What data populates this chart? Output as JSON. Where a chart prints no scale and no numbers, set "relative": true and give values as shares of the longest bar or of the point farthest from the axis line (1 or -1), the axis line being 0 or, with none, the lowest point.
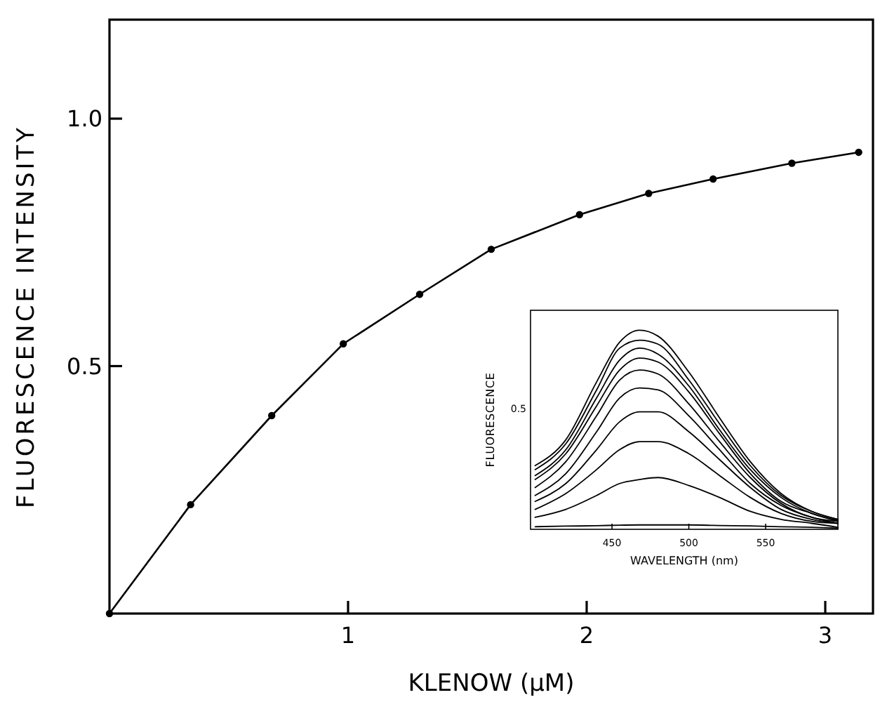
{
  "chart_data": [
    {
      "type": "line",
      "xlabel": "KLENOW (µM)",
      "ylabel": "FLUORESCENCE INTENSITY",
      "xlim": [
        0,
        3.2
      ],
      "ylim": [
        0,
        1.2
      ],
      "xticks": [
        1,
        2,
        3
      ],
      "yticks": [
        0.5,
        {
          "value": 1.0,
          "label": "1.0"
        }
      ],
      "grid": false,
      "marker": "circle",
      "line_style": "solid",
      "series": [
        {
          "color": "#000000",
          "x": [
            0,
            0.34,
            0.68,
            0.98,
            1.3,
            1.6,
            1.97,
            2.26,
            2.53,
            2.86,
            3.14
          ],
          "values": [
            0,
            0.22,
            0.4,
            0.545,
            0.645,
            0.736,
            0.806,
            0.849,
            0.878,
            0.91,
            0.932
          ]
        }
      ]
    },
    {
      "type": "line",
      "xlabel": "WAVELENGTH (nm)",
      "ylabel": "FLUORESCENCE",
      "relative": true,
      "annotations": [
        "0.5"
      ],
      "xlim": [
        397,
        597
      ],
      "xticks": [
        450,
        500,
        550
      ],
      "grid": false,
      "marker": "none",
      "line_style": "solid",
      "x": [
        400,
        420,
        440,
        455,
        468,
        480,
        500,
        520,
        540,
        560,
        580,
        597
      ],
      "series": [
        {
          "color": "#000000",
          "values": [
            0.32,
            0.45,
            0.74,
            0.94,
            1,
            0.97,
            0.79,
            0.56,
            0.34,
            0.18,
            0.09,
            0.05
          ]
        },
        {
          "color": "#000000",
          "values": [
            0.3,
            0.43,
            0.7,
            0.91,
            0.95,
            0.93,
            0.75,
            0.53,
            0.32,
            0.17,
            0.09,
            0.05
          ]
        },
        {
          "color": "#000000",
          "values": [
            0.27,
            0.4,
            0.66,
            0.85,
            0.91,
            0.88,
            0.72,
            0.5,
            0.3,
            0.16,
            0.08,
            0.045
          ]
        },
        {
          "color": "#000000",
          "values": [
            0.25,
            0.38,
            0.62,
            0.8,
            0.86,
            0.84,
            0.69,
            0.48,
            0.28,
            0.14,
            0.08,
            0.04
          ]
        },
        {
          "color": "#000000",
          "values": [
            0.21,
            0.34,
            0.57,
            0.75,
            0.8,
            0.78,
            0.63,
            0.44,
            0.26,
            0.13,
            0.06,
            0.04
          ]
        },
        {
          "color": "#000000",
          "values": [
            0.17,
            0.28,
            0.49,
            0.66,
            0.71,
            0.7,
            0.57,
            0.4,
            0.23,
            0.12,
            0.06,
            0.03
          ]
        },
        {
          "color": "#000000",
          "values": [
            0.14,
            0.23,
            0.4,
            0.54,
            0.59,
            0.59,
            0.49,
            0.35,
            0.21,
            0.1,
            0.05,
            0.03
          ]
        },
        {
          "color": "#000000",
          "values": [
            0.1,
            0.18,
            0.3,
            0.4,
            0.44,
            0.44,
            0.38,
            0.27,
            0.16,
            0.08,
            0.04,
            0.03
          ]
        },
        {
          "color": "#000000",
          "values": [
            0.06,
            0.1,
            0.17,
            0.23,
            0.25,
            0.26,
            0.22,
            0.16,
            0.09,
            0.05,
            0.03,
            0.01
          ]
        },
        {
          "color": "#000000",
          "values": [
            0.013,
            0.016,
            0.018,
            0.021,
            0.022,
            0.022,
            0.022,
            0.019,
            0.017,
            0.013,
            0.01,
            0.006
          ]
        }
      ]
    }
  ]
}
